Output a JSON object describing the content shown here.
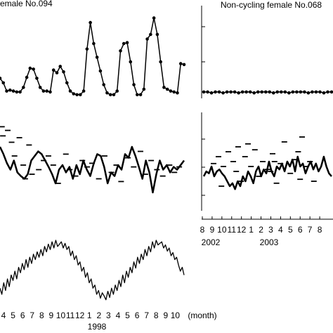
{
  "chart_data": [
    {
      "type": "line",
      "title": "emale No.094",
      "markers": true,
      "color": "#000000",
      "ylim": [
        0,
        100
      ],
      "xlim": [
        0,
        19
      ],
      "values": [
        22,
        17,
        8,
        9,
        8,
        7,
        7,
        12,
        23,
        33,
        32,
        22,
        12,
        8,
        8,
        7,
        31,
        28,
        35,
        29,
        17,
        8,
        5,
        4,
        4,
        8,
        54,
        83,
        60,
        45,
        30,
        15,
        6,
        4,
        4,
        8,
        52,
        60,
        61,
        40,
        15,
        4,
        4,
        10,
        65,
        70,
        88,
        70,
        40,
        12,
        10,
        8,
        7,
        6,
        38,
        37
      ]
    },
    {
      "type": "line",
      "title": "Non-cycling female No.068",
      "markers": true,
      "color": "#000000",
      "ylim": [
        0,
        100
      ],
      "xlim": [
        0,
        13
      ],
      "values": [
        7,
        7,
        6,
        7,
        7,
        6,
        7,
        7,
        7,
        6,
        7,
        7,
        7,
        6,
        7,
        7,
        7,
        7,
        6,
        7,
        7,
        7,
        6,
        7,
        7,
        7,
        7,
        6,
        7,
        7,
        7,
        6,
        7,
        7
      ]
    },
    {
      "type": "line",
      "color": "#000000",
      "ylim": [
        0,
        100
      ],
      "xlim": [
        0,
        19
      ],
      "values": [
        70,
        62,
        52,
        45,
        55,
        42,
        38,
        35,
        40,
        55,
        60,
        65,
        62,
        55,
        48,
        40,
        30,
        45,
        50,
        42,
        48,
        35,
        50,
        40,
        55,
        45,
        38,
        52,
        62,
        60,
        48,
        30,
        42,
        38,
        50,
        45,
        62,
        58,
        70,
        60,
        48,
        35,
        55,
        42,
        20,
        40,
        55,
        45,
        50,
        42,
        48,
        45,
        50,
        55
      ],
      "dashes": {
        "x": [
          0.2,
          0.3,
          0.8,
          1.2,
          1.5,
          2.0,
          2.4,
          2.6,
          3.0,
          3.3,
          4.0,
          4.5,
          5.0,
          5.5,
          6.0,
          6.8,
          7.2,
          7.8,
          8.5,
          9.0,
          9.5,
          10.2,
          10.8,
          11.5,
          12.0,
          12.5,
          13.2,
          13.8,
          14.5,
          15.0,
          15.6,
          16.2,
          16.8,
          17.5,
          18.0,
          18.5
        ],
        "y": [
          92,
          82,
          88,
          75,
          60,
          80,
          50,
          35,
          72,
          40,
          45,
          55,
          60,
          50,
          30,
          62,
          45,
          38,
          55,
          48,
          52,
          35,
          60,
          42,
          50,
          32,
          58,
          48,
          65,
          40,
          55,
          45,
          38,
          50,
          42,
          48
        ]
      }
    },
    {
      "type": "line",
      "color": "#000000",
      "ylim": [
        0,
        100
      ],
      "xlim": [
        0,
        13
      ],
      "values": [
        35,
        40,
        38,
        45,
        35,
        40,
        42,
        38,
        35,
        30,
        25,
        28,
        22,
        30,
        25,
        35,
        30,
        40,
        35,
        28,
        40,
        45,
        35,
        42,
        38,
        50,
        40,
        35,
        45,
        42,
        48,
        40,
        50,
        45,
        52,
        40,
        55,
        45,
        48,
        38,
        45,
        50,
        42,
        48,
        40,
        45,
        55,
        45,
        38,
        35
      ],
      "dashes": {
        "x": [
          1.0,
          1.5,
          2.0,
          2.5,
          3.0,
          3.3,
          3.8,
          4.2,
          4.8,
          5.2,
          5.6,
          6.0,
          6.5,
          7.0,
          7.4,
          7.8,
          8.2,
          8.8,
          9.2,
          9.6,
          10.0,
          10.4,
          10.8,
          11.2,
          1.8,
          4.5,
          6.8,
          9.8,
          3.5,
          7.2
        ],
        "y": [
          48,
          55,
          45,
          60,
          50,
          40,
          30,
          55,
          45,
          62,
          35,
          50,
          42,
          58,
          28,
          48,
          70,
          38,
          52,
          60,
          75,
          45,
          50,
          30,
          25,
          68,
          40,
          32,
          65,
          50
        ]
      },
      "xticks": [
        {
          "value": 0,
          "label": "8"
        },
        {
          "value": 1,
          "label": "9"
        },
        {
          "value": 2,
          "label": "10"
        },
        {
          "value": 3,
          "label": "11"
        },
        {
          "value": 4,
          "label": "12"
        },
        {
          "value": 5,
          "label": "1"
        },
        {
          "value": 6,
          "label": "2"
        },
        {
          "value": 7,
          "label": "3"
        },
        {
          "value": 8,
          "label": "4"
        },
        {
          "value": 9,
          "label": "5"
        },
        {
          "value": 10,
          "label": "6"
        },
        {
          "value": 11,
          "label": "7"
        },
        {
          "value": 12,
          "label": "8"
        }
      ],
      "years": [
        "2002",
        "2003"
      ]
    },
    {
      "type": "line",
      "color": "#000000",
      "ylim": [
        0,
        100
      ],
      "xlim": [
        0,
        19
      ],
      "values": [
        18,
        10,
        25,
        15,
        30,
        20,
        35,
        28,
        40,
        30,
        45,
        38,
        50,
        42,
        55,
        45,
        58,
        50,
        62,
        55,
        65,
        58,
        68,
        60,
        72,
        65,
        75,
        68,
        78,
        70,
        80,
        72,
        75,
        78,
        70,
        76,
        68,
        72,
        60,
        66,
        55,
        60,
        48,
        52,
        40,
        45,
        32,
        38,
        25,
        30,
        18,
        22,
        10,
        15,
        5,
        12,
        8,
        3,
        14,
        6,
        18,
        10,
        22,
        15,
        28,
        20,
        35,
        25,
        40,
        32,
        45,
        38,
        52,
        44,
        58,
        50,
        62,
        55,
        68,
        60,
        72,
        65,
        78,
        70,
        80,
        74,
        76,
        78,
        70,
        74,
        66,
        70,
        60,
        64,
        55,
        58,
        48,
        40,
        45,
        35
      ],
      "xticks": [
        {
          "value": 0,
          "label": "4"
        },
        {
          "value": 1,
          "label": "5"
        },
        {
          "value": 2,
          "label": "6"
        },
        {
          "value": 3,
          "label": "7"
        },
        {
          "value": 4,
          "label": "8"
        },
        {
          "value": 5,
          "label": "9"
        },
        {
          "value": 6,
          "label": "10"
        },
        {
          "value": 7,
          "label": "11"
        },
        {
          "value": 8,
          "label": "12"
        },
        {
          "value": 9,
          "label": "1"
        },
        {
          "value": 10,
          "label": "2"
        },
        {
          "value": 11,
          "label": "3"
        },
        {
          "value": 12,
          "label": "4"
        },
        {
          "value": 13,
          "label": "5"
        },
        {
          "value": 14,
          "label": "6"
        },
        {
          "value": 15,
          "label": "7"
        },
        {
          "value": 16,
          "label": "8"
        },
        {
          "value": 17,
          "label": "9"
        },
        {
          "value": 18,
          "label": "10"
        }
      ],
      "years": [
        "1998"
      ],
      "xlabel": "(month)"
    }
  ]
}
